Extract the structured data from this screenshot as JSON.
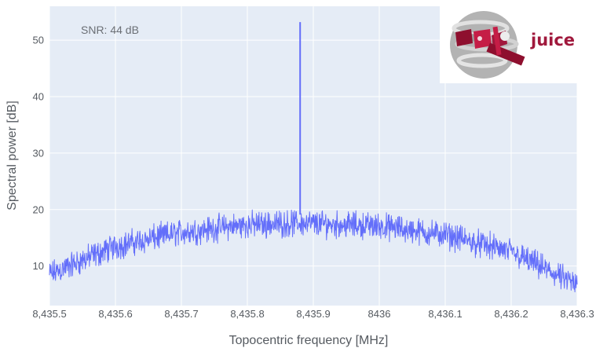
{
  "chart_data": {
    "type": "line",
    "xlabel": "Topocentric frequency  [MHz]",
    "ylabel": "Spectral power [dB]",
    "xlim": [
      8435.5,
      8436.3
    ],
    "ylim": [
      3,
      56
    ],
    "x_ticks": [
      8435.5,
      8435.6,
      8435.7,
      8435.8,
      8435.9,
      8436,
      8436.1,
      8436.2,
      8436.3
    ],
    "x_tick_labels": [
      "8,435.5",
      "8,435.6",
      "8,435.7",
      "8,435.8",
      "8,435.9",
      "8436",
      "8,436.1",
      "8,436.2",
      "8,436.3"
    ],
    "y_ticks": [
      10,
      20,
      30,
      40,
      50
    ],
    "y_tick_labels": [
      "10",
      "20",
      "30",
      "40",
      "50"
    ],
    "grid": true,
    "background": "#e5ecf6",
    "series": [
      {
        "color": "#636efa",
        "noise_band_db": 2.5,
        "x": [
          8435.5,
          8435.6,
          8435.7,
          8435.8,
          8435.88,
          8436.0,
          8436.1,
          8436.2,
          8436.3
        ],
        "baseline": [
          8.5,
          13.5,
          16.0,
          17.3,
          17.6,
          17.1,
          15.5,
          12.5,
          6.5
        ],
        "peak": {
          "x": 8435.88,
          "y": 53.2
        }
      }
    ],
    "annotations": [
      {
        "text": "SNR: 44 dB",
        "position": "top-left"
      }
    ]
  },
  "logo": {
    "text": "juice",
    "position": "top-right",
    "color": "#a0183c"
  }
}
